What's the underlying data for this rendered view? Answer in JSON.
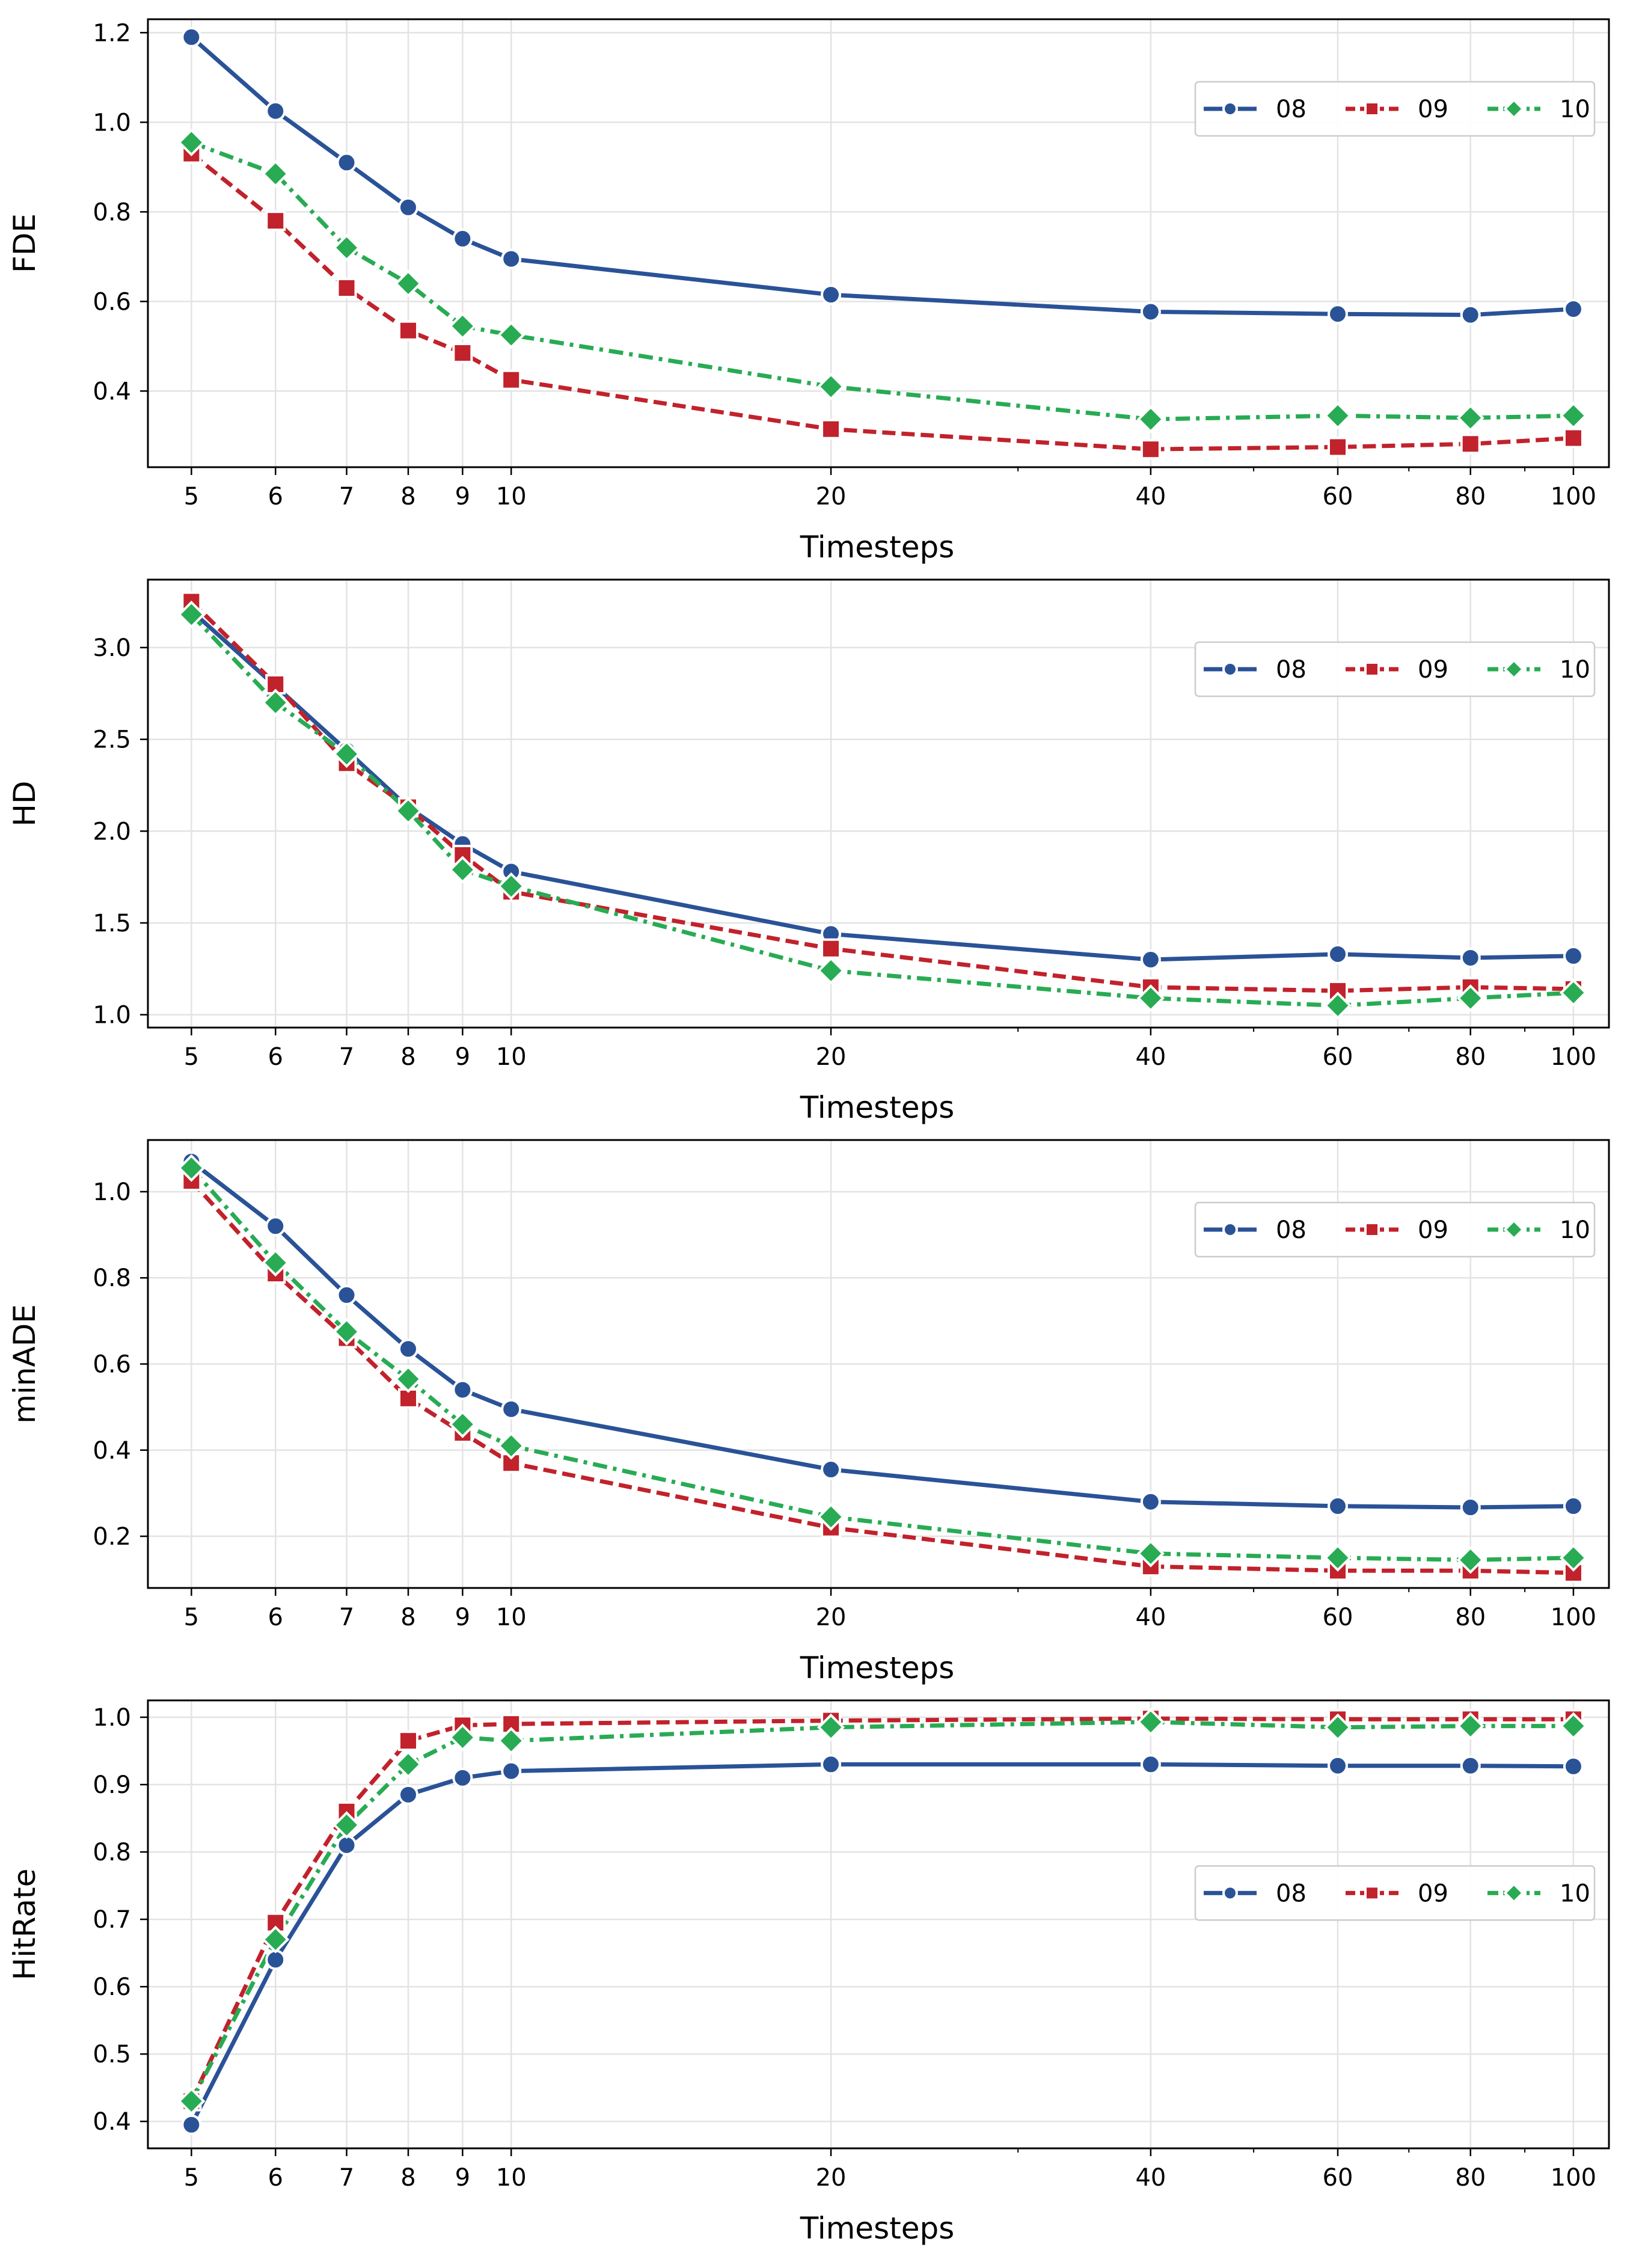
{
  "chart_data": [
    {
      "type": "line",
      "ylabel": "FDE",
      "xlabel": "Timesteps",
      "xscale": "log",
      "x": [
        5,
        6,
        7,
        8,
        9,
        10,
        20,
        40,
        60,
        80,
        100
      ],
      "xticks": [
        "5",
        "6",
        "7",
        "8",
        "9",
        "10",
        "20",
        "40",
        "60",
        "80",
        "100"
      ],
      "ylim": [
        0.23,
        1.23
      ],
      "yticks": [
        0.4,
        0.6,
        0.8,
        1.0,
        1.2
      ],
      "ytick_labels": [
        "0.4",
        "0.6",
        "0.8",
        "1.0",
        "1.2"
      ],
      "grid": true,
      "legend_position": "upper-right",
      "series": [
        {
          "name": "08",
          "color": "#2a5297",
          "marker": "circle",
          "linestyle": "solid",
          "values": [
            1.19,
            1.025,
            0.91,
            0.81,
            0.74,
            0.695,
            0.615,
            0.577,
            0.572,
            0.57,
            0.583
          ]
        },
        {
          "name": "09",
          "color": "#c1222b",
          "marker": "square",
          "linestyle": "dashed",
          "values": [
            0.93,
            0.78,
            0.63,
            0.535,
            0.485,
            0.425,
            0.315,
            0.27,
            0.275,
            0.282,
            0.295
          ]
        },
        {
          "name": "10",
          "color": "#28ab53",
          "marker": "diamond",
          "linestyle": "dashdot",
          "values": [
            0.955,
            0.885,
            0.72,
            0.64,
            0.545,
            0.525,
            0.41,
            0.337,
            0.345,
            0.34,
            0.345
          ]
        }
      ]
    },
    {
      "type": "line",
      "ylabel": "HD",
      "xlabel": "Timesteps",
      "xscale": "log",
      "x": [
        5,
        6,
        7,
        8,
        9,
        10,
        20,
        40,
        60,
        80,
        100
      ],
      "xticks": [
        "5",
        "6",
        "7",
        "8",
        "9",
        "10",
        "20",
        "40",
        "60",
        "80",
        "100"
      ],
      "ylim": [
        0.93,
        3.37
      ],
      "yticks": [
        1.0,
        1.5,
        2.0,
        2.5,
        3.0
      ],
      "ytick_labels": [
        "1.0",
        "1.5",
        "2.0",
        "2.5",
        "3.0"
      ],
      "grid": true,
      "legend_position": "upper-right",
      "series": [
        {
          "name": "08",
          "color": "#2a5297",
          "marker": "circle",
          "linestyle": "solid",
          "values": [
            3.2,
            2.79,
            2.44,
            2.13,
            1.93,
            1.78,
            1.44,
            1.3,
            1.33,
            1.31,
            1.32
          ]
        },
        {
          "name": "09",
          "color": "#c1222b",
          "marker": "square",
          "linestyle": "dashed",
          "values": [
            3.25,
            2.8,
            2.37,
            2.13,
            1.87,
            1.67,
            1.36,
            1.15,
            1.13,
            1.15,
            1.14
          ]
        },
        {
          "name": "10",
          "color": "#28ab53",
          "marker": "diamond",
          "linestyle": "dashdot",
          "values": [
            3.18,
            2.7,
            2.42,
            2.11,
            1.79,
            1.7,
            1.24,
            1.09,
            1.05,
            1.09,
            1.12
          ]
        }
      ]
    },
    {
      "type": "line",
      "ylabel": "minADE",
      "xlabel": "Timesteps",
      "xscale": "log",
      "x": [
        5,
        6,
        7,
        8,
        9,
        10,
        20,
        40,
        60,
        80,
        100
      ],
      "xticks": [
        "5",
        "6",
        "7",
        "8",
        "9",
        "10",
        "20",
        "40",
        "60",
        "80",
        "100"
      ],
      "ylim": [
        0.08,
        1.12
      ],
      "yticks": [
        0.2,
        0.4,
        0.6,
        0.8,
        1.0
      ],
      "ytick_labels": [
        "0.2",
        "0.4",
        "0.6",
        "0.8",
        "1.0"
      ],
      "grid": true,
      "legend_position": "upper-right",
      "series": [
        {
          "name": "08",
          "color": "#2a5297",
          "marker": "circle",
          "linestyle": "solid",
          "values": [
            1.07,
            0.92,
            0.76,
            0.635,
            0.54,
            0.495,
            0.355,
            0.28,
            0.27,
            0.267,
            0.27
          ]
        },
        {
          "name": "09",
          "color": "#c1222b",
          "marker": "square",
          "linestyle": "dashed",
          "values": [
            1.025,
            0.81,
            0.66,
            0.52,
            0.44,
            0.37,
            0.22,
            0.13,
            0.12,
            0.12,
            0.115
          ]
        },
        {
          "name": "10",
          "color": "#28ab53",
          "marker": "diamond",
          "linestyle": "dashdot",
          "values": [
            1.055,
            0.835,
            0.675,
            0.565,
            0.46,
            0.41,
            0.245,
            0.16,
            0.15,
            0.145,
            0.15
          ]
        }
      ]
    },
    {
      "type": "line",
      "ylabel": "HitRate",
      "xlabel": "Timesteps",
      "xscale": "log",
      "x": [
        5,
        6,
        7,
        8,
        9,
        10,
        20,
        40,
        60,
        80,
        100
      ],
      "xticks": [
        "5",
        "6",
        "7",
        "8",
        "9",
        "10",
        "20",
        "40",
        "60",
        "80",
        "100"
      ],
      "ylim": [
        0.36,
        1.025
      ],
      "yticks": [
        0.4,
        0.5,
        0.6,
        0.7,
        0.8,
        0.9,
        1.0
      ],
      "ytick_labels": [
        "0.4",
        "0.5",
        "0.6",
        "0.7",
        "0.8",
        "0.9",
        "1.0"
      ],
      "grid": true,
      "legend_position": "center-right",
      "series": [
        {
          "name": "08",
          "color": "#2a5297",
          "marker": "circle",
          "linestyle": "solid",
          "values": [
            0.395,
            0.64,
            0.81,
            0.885,
            0.91,
            0.92,
            0.93,
            0.93,
            0.928,
            0.928,
            0.927
          ]
        },
        {
          "name": "09",
          "color": "#c1222b",
          "marker": "square",
          "linestyle": "dashed",
          "values": [
            0.43,
            0.695,
            0.86,
            0.965,
            0.988,
            0.99,
            0.995,
            0.998,
            0.997,
            0.997,
            0.997
          ]
        },
        {
          "name": "10",
          "color": "#28ab53",
          "marker": "diamond",
          "linestyle": "dashdot",
          "values": [
            0.43,
            0.67,
            0.84,
            0.93,
            0.97,
            0.965,
            0.985,
            0.993,
            0.985,
            0.987,
            0.987
          ]
        }
      ]
    }
  ]
}
